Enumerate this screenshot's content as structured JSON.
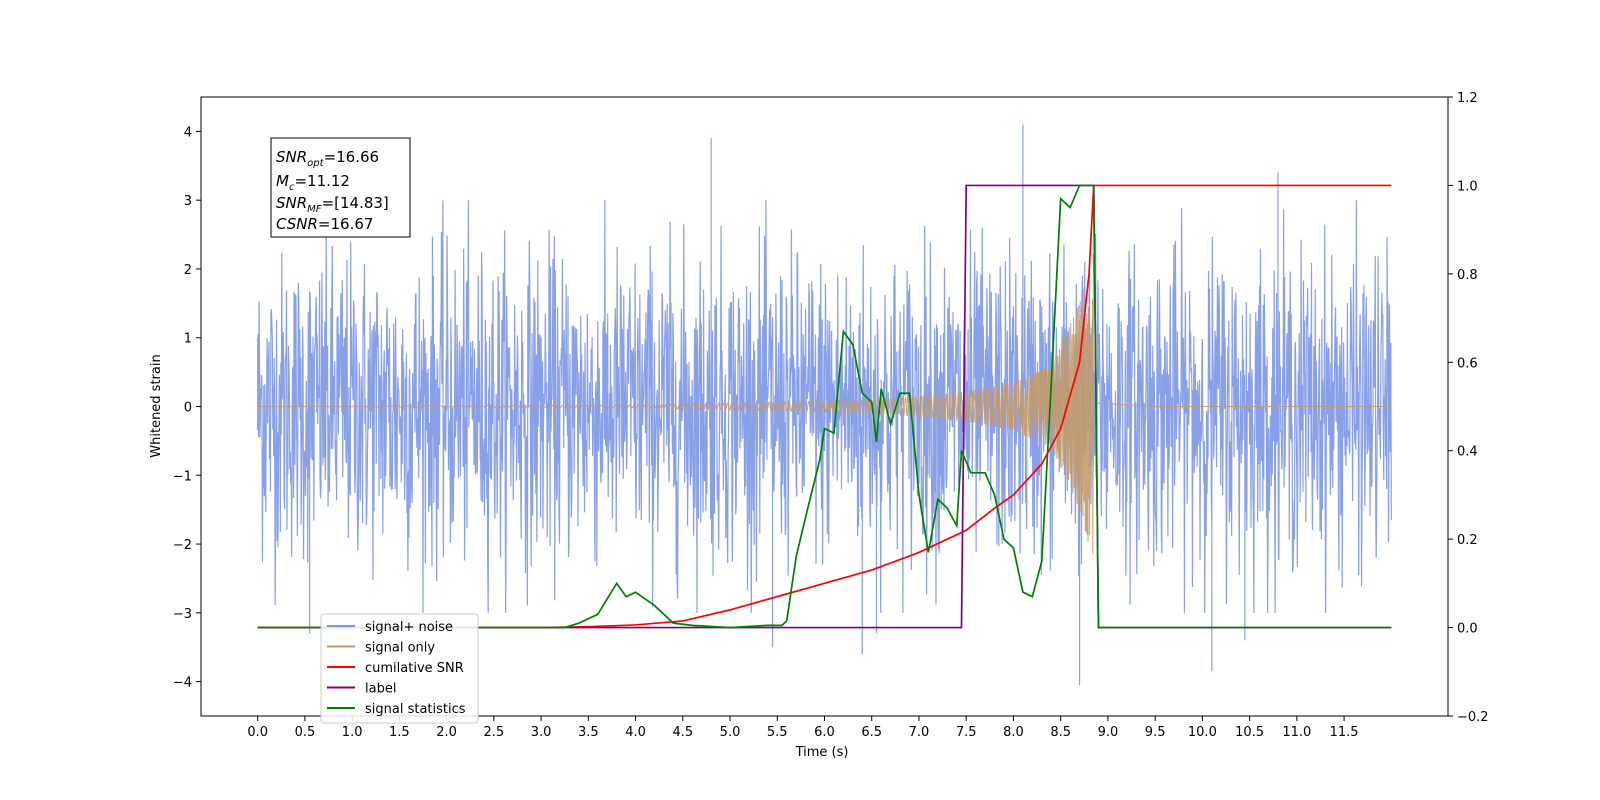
{
  "chart_data": {
    "type": "line",
    "xlabel": "Time (s)",
    "ylabel": "Whitened strain",
    "xlim": [
      -0.6,
      12.6
    ],
    "ylim_left": [
      -4.5,
      4.5
    ],
    "ylim_right": [
      -0.2,
      1.2
    ],
    "x_ticks": [
      0.0,
      0.5,
      1.0,
      1.5,
      2.0,
      2.5,
      3.0,
      3.5,
      4.0,
      4.5,
      5.0,
      5.5,
      6.0,
      6.5,
      7.0,
      7.5,
      8.0,
      8.5,
      9.0,
      9.5,
      10.0,
      10.5,
      11.0,
      11.5
    ],
    "x_tick_labels": [
      "0.0",
      "0.5",
      "1.0",
      "1.5",
      "2.0",
      "2.5",
      "3.0",
      "3.5",
      "4.0",
      "4.5",
      "5.0",
      "5.5",
      "6.0",
      "6.5",
      "7.0",
      "7.5",
      "8.0",
      "8.5",
      "9.0",
      "9.5",
      "10.0",
      "10.5",
      "11.0",
      "11.5"
    ],
    "y_left_ticks": [
      4,
      3,
      2,
      1,
      0,
      -1,
      -2,
      -3,
      -4
    ],
    "y_left_tick_labels": [
      "4",
      "3",
      "2",
      "1",
      "0",
      "−1",
      "−2",
      "−3",
      "−4"
    ],
    "y_right_ticks": [
      1.2,
      1.0,
      0.8,
      0.6,
      0.4,
      0.2,
      0.0,
      -0.2
    ],
    "y_right_tick_labels": [
      "1.2",
      "1.0",
      "0.8",
      "0.6",
      "0.4",
      "0.2",
      "0.0",
      "−0.2"
    ],
    "grid": false,
    "legend_position": "bottom-left",
    "annotation": {
      "snr_opt": "16.66",
      "mc": "11.12",
      "snr_mf": "[14.83]",
      "csnr": "16.67"
    },
    "series": [
      {
        "name": "signal+ noise",
        "color": "#7b96e6",
        "axis": "left",
        "kind": "noise",
        "x_range": [
          0.0,
          12.0
        ],
        "typical_amplitude": 2.0,
        "peak_points": [
          [
            0.0,
            1.0
          ],
          [
            0.55,
            -3.3
          ],
          [
            4.8,
            3.9
          ],
          [
            5.45,
            -3.5
          ],
          [
            6.4,
            -3.6
          ],
          [
            6.55,
            -3.3
          ],
          [
            8.1,
            4.1
          ],
          [
            8.7,
            -4.05
          ],
          [
            10.1,
            -3.85
          ],
          [
            10.8,
            3.4
          ],
          [
            10.45,
            -3.4
          ]
        ]
      },
      {
        "name": "signal only",
        "color": "#c49a6c",
        "axis": "left",
        "kind": "chirp",
        "t_merger": 8.85,
        "points": [
          [
            0.0,
            0.0
          ],
          [
            2.0,
            0.01
          ],
          [
            4.0,
            0.02
          ],
          [
            5.0,
            0.05
          ],
          [
            6.0,
            0.08
          ],
          [
            6.5,
            0.1
          ],
          [
            7.0,
            0.15
          ],
          [
            7.5,
            0.22
          ],
          [
            8.0,
            0.35
          ],
          [
            8.4,
            0.6
          ],
          [
            8.7,
            1.5
          ],
          [
            8.85,
            2.3
          ],
          [
            8.88,
            0.05
          ],
          [
            9.5,
            0.0
          ],
          [
            12.0,
            0.0
          ]
        ]
      },
      {
        "name": "cumilative SNR",
        "color": "#ff0000",
        "axis": "right",
        "points": [
          [
            0.0,
            0.0
          ],
          [
            2.0,
            0.0
          ],
          [
            3.0,
            0.0
          ],
          [
            3.5,
            0.002
          ],
          [
            4.0,
            0.006
          ],
          [
            4.5,
            0.015
          ],
          [
            5.0,
            0.04
          ],
          [
            5.5,
            0.07
          ],
          [
            6.0,
            0.1
          ],
          [
            6.5,
            0.13
          ],
          [
            7.0,
            0.17
          ],
          [
            7.5,
            0.22
          ],
          [
            7.8,
            0.27
          ],
          [
            8.0,
            0.3
          ],
          [
            8.3,
            0.37
          ],
          [
            8.5,
            0.45
          ],
          [
            8.7,
            0.6
          ],
          [
            8.8,
            0.8
          ],
          [
            8.85,
            1.0
          ],
          [
            12.0,
            1.0
          ]
        ]
      },
      {
        "name": "label",
        "color": "#800080",
        "axis": "right",
        "points": [
          [
            0.0,
            0.0
          ],
          [
            7.45,
            0.0
          ],
          [
            7.5,
            1.0
          ],
          [
            8.85,
            1.0
          ],
          [
            8.9,
            0.0
          ],
          [
            12.0,
            0.0
          ]
        ]
      },
      {
        "name": "signal statistics",
        "color": "#008000",
        "axis": "right",
        "points": [
          [
            0.0,
            0.0
          ],
          [
            2.0,
            0.0
          ],
          [
            3.0,
            0.0
          ],
          [
            3.25,
            0.0
          ],
          [
            3.4,
            0.01
          ],
          [
            3.6,
            0.03
          ],
          [
            3.8,
            0.1
          ],
          [
            3.9,
            0.07
          ],
          [
            4.0,
            0.08
          ],
          [
            4.2,
            0.05
          ],
          [
            4.4,
            0.01
          ],
          [
            4.6,
            0.005
          ],
          [
            5.0,
            0.0
          ],
          [
            5.4,
            0.005
          ],
          [
            5.55,
            0.005
          ],
          [
            5.6,
            0.015
          ],
          [
            5.7,
            0.16
          ],
          [
            5.8,
            0.25
          ],
          [
            5.95,
            0.38
          ],
          [
            6.0,
            0.45
          ],
          [
            6.1,
            0.44
          ],
          [
            6.2,
            0.67
          ],
          [
            6.3,
            0.64
          ],
          [
            6.4,
            0.53
          ],
          [
            6.5,
            0.51
          ],
          [
            6.55,
            0.42
          ],
          [
            6.6,
            0.54
          ],
          [
            6.7,
            0.46
          ],
          [
            6.8,
            0.53
          ],
          [
            6.9,
            0.53
          ],
          [
            7.0,
            0.3
          ],
          [
            7.1,
            0.17
          ],
          [
            7.2,
            0.29
          ],
          [
            7.3,
            0.27
          ],
          [
            7.4,
            0.23
          ],
          [
            7.45,
            0.4
          ],
          [
            7.55,
            0.35
          ],
          [
            7.7,
            0.35
          ],
          [
            7.8,
            0.3
          ],
          [
            7.9,
            0.2
          ],
          [
            8.0,
            0.18
          ],
          [
            8.1,
            0.08
          ],
          [
            8.2,
            0.07
          ],
          [
            8.3,
            0.15
          ],
          [
            8.4,
            0.55
          ],
          [
            8.5,
            0.97
          ],
          [
            8.6,
            0.95
          ],
          [
            8.7,
            1.0
          ],
          [
            8.85,
            1.0
          ],
          [
            8.9,
            0.0
          ],
          [
            12.0,
            0.0
          ]
        ]
      }
    ]
  }
}
